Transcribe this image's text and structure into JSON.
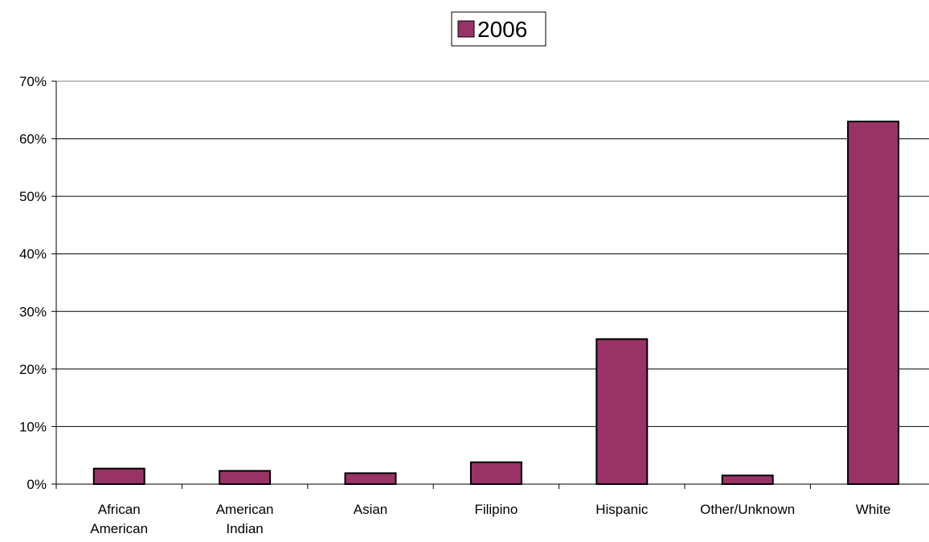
{
  "chart_data": {
    "type": "bar",
    "categories": [
      [
        "African",
        "American"
      ],
      [
        "American",
        "Indian"
      ],
      [
        "Asian"
      ],
      [
        "Filipino"
      ],
      [
        "Hispanic"
      ],
      [
        "Other/Unknown"
      ],
      [
        "White"
      ]
    ],
    "series": [
      {
        "name": "2006",
        "values": [
          2.7,
          2.3,
          1.9,
          3.8,
          25.2,
          1.5,
          63.0
        ],
        "color": "#993366"
      }
    ],
    "ylim": [
      0,
      70
    ],
    "yticks": [
      0,
      10,
      20,
      30,
      40,
      50,
      60,
      70
    ],
    "ytick_labels": [
      "0%",
      "10%",
      "20%",
      "30%",
      "40%",
      "50%",
      "60%",
      "70%"
    ],
    "grid": true,
    "legend_position": "top-center"
  }
}
